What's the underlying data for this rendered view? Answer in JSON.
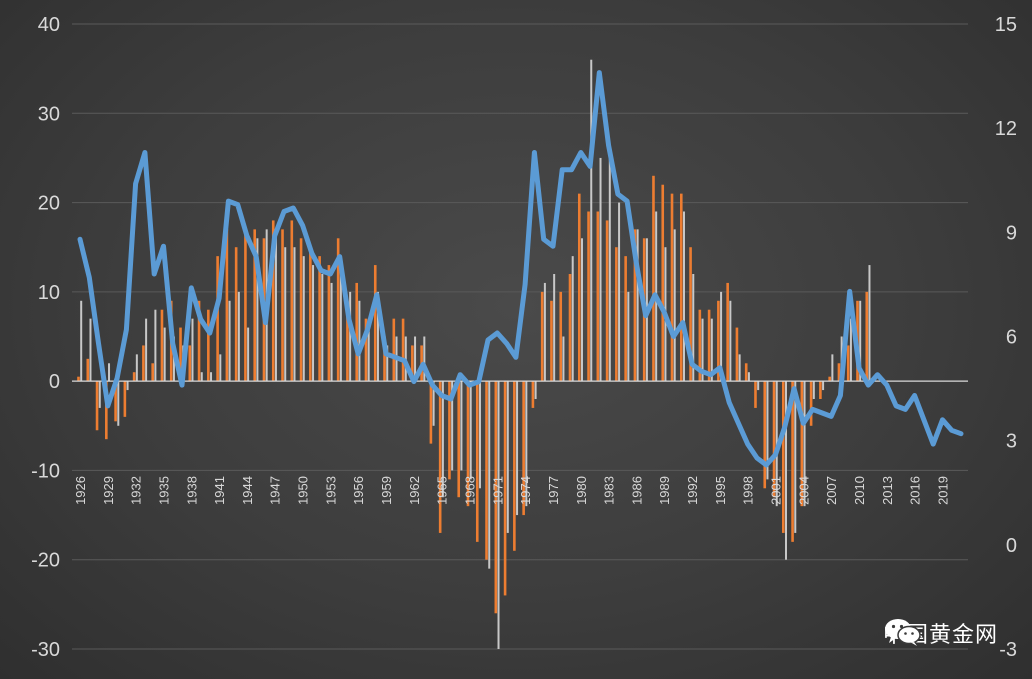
{
  "chart_data": {
    "type": "bar",
    "title": "",
    "xlabel": "",
    "ylabel": "",
    "left_axis": {
      "ylim": [
        -30,
        40
      ],
      "ticks": [
        "40",
        "30",
        "20",
        "10",
        "0",
        "-10",
        "-20",
        "-30"
      ]
    },
    "right_axis": {
      "ylim": [
        -3,
        15
      ],
      "ticks": [
        "15",
        "12",
        "9",
        "6",
        "3",
        "0",
        "-3"
      ]
    },
    "x_tick_labels": [
      "1926",
      "1929",
      "1932",
      "1935",
      "1938",
      "1941",
      "1944",
      "1947",
      "1950",
      "1953",
      "1956",
      "1959",
      "1962",
      "1965",
      "1968",
      "1971",
      "1974",
      "1977",
      "1980",
      "1983",
      "1986",
      "1989",
      "1992",
      "1995",
      "1998",
      "2001",
      "2004",
      "2007",
      "2010",
      "2013",
      "2016",
      "2019"
    ],
    "years": [
      1926,
      1927,
      1928,
      1929,
      1930,
      1931,
      1932,
      1933,
      1934,
      1935,
      1936,
      1937,
      1938,
      1939,
      1940,
      1941,
      1942,
      1943,
      1944,
      1945,
      1946,
      1947,
      1948,
      1949,
      1950,
      1951,
      1952,
      1953,
      1954,
      1955,
      1956,
      1957,
      1958,
      1959,
      1960,
      1961,
      1962,
      1963,
      1964,
      1965,
      1966,
      1967,
      1968,
      1969,
      1970,
      1971,
      1972,
      1973,
      1974,
      1975,
      1976,
      1977,
      1978,
      1979,
      1980,
      1981,
      1982,
      1983,
      1984,
      1985,
      1986,
      1987,
      1988,
      1989,
      1990,
      1991,
      1992,
      1993,
      1994,
      1995,
      1996,
      1997,
      1998,
      1999,
      2000,
      2001,
      2002,
      2003,
      2004,
      2005,
      2006,
      2007,
      2008,
      2009,
      2010,
      2011,
      2012,
      2013,
      2014,
      2015,
      2016,
      2017,
      2018,
      2019,
      2020,
      2021
    ],
    "series": [
      {
        "axis": "left",
        "kind": "bar",
        "color": "#ed7d31",
        "values": [
          0.5,
          2.5,
          -5.5,
          -6.5,
          -4.5,
          -4,
          1,
          4,
          2,
          8,
          9,
          6,
          4,
          9,
          8,
          14,
          17,
          15,
          17,
          17,
          16,
          18,
          17,
          18,
          16,
          15,
          14,
          13,
          16,
          9,
          11,
          7,
          13,
          5,
          7,
          7,
          4,
          4,
          -7,
          -17,
          -11,
          -13,
          -14,
          -18,
          -20,
          -26,
          -24,
          -19,
          -15,
          -3,
          10,
          9,
          10,
          12,
          21,
          19,
          19,
          18,
          15,
          14,
          17,
          16,
          23,
          22,
          21,
          21,
          15,
          8,
          8,
          9,
          11,
          6,
          2,
          -3,
          -12,
          -13,
          -17,
          -18,
          -14,
          -5,
          -2,
          0.5,
          2,
          4,
          9,
          10,
          0,
          0,
          0,
          0,
          0,
          0,
          0,
          0,
          0,
          0
        ]
      },
      {
        "axis": "left",
        "kind": "bar",
        "color": "#c8c8c8",
        "values": [
          9,
          7,
          -3,
          2,
          -5,
          -1,
          3,
          7,
          8,
          6,
          5,
          4,
          7,
          1,
          1,
          3,
          9,
          10,
          6,
          16,
          17,
          17,
          15,
          15,
          14,
          13,
          12,
          11,
          14,
          10,
          9,
          6,
          10,
          4,
          5,
          5,
          5,
          5,
          -5,
          -13,
          -10,
          -10,
          -11,
          -12,
          -21,
          -30,
          -17,
          -15,
          -14,
          -2,
          11,
          12,
          5,
          14,
          16,
          36,
          25,
          25,
          20,
          10,
          17,
          16,
          19,
          15,
          17,
          19,
          12,
          7,
          7,
          10,
          9,
          3,
          1,
          -1,
          -11,
          -14,
          -20,
          -17,
          -14,
          -2,
          -1,
          3,
          5,
          7,
          9,
          13,
          0,
          0,
          0,
          0,
          0,
          0,
          0,
          0,
          0,
          0
        ]
      },
      {
        "axis": "right",
        "kind": "line",
        "color": "#5b9bd5",
        "values": [
          8.8,
          7.7,
          5.8,
          4.0,
          4.8,
          6.2,
          10.4,
          11.3,
          7.8,
          8.6,
          5.8,
          4.6,
          7.4,
          6.5,
          6.1,
          7.1,
          9.9,
          9.8,
          8.9,
          8.3,
          6.4,
          8.9,
          9.6,
          9.7,
          9.2,
          8.4,
          7.9,
          7.8,
          8.3,
          6.5,
          5.5,
          6.2,
          7.2,
          5.5,
          5.4,
          5.3,
          4.7,
          5.2,
          4.6,
          4.3,
          4.2,
          4.9,
          4.6,
          4.7,
          5.9,
          6.1,
          5.8,
          5.4,
          7.5,
          11.3,
          8.8,
          8.6,
          10.8,
          10.8,
          11.3,
          10.9,
          13.6,
          11.5,
          10.1,
          9.9,
          8.1,
          6.6,
          7.2,
          6.7,
          6.0,
          6.4,
          5.2,
          5.0,
          4.9,
          5.1,
          4.1,
          3.5,
          2.9,
          2.5,
          2.3,
          2.6,
          3.4,
          4.5,
          3.5,
          3.9,
          3.8,
          3.7,
          4.3,
          7.3,
          5.1,
          4.6,
          4.9,
          4.6,
          4.0,
          3.9,
          4.3,
          3.6,
          2.9,
          3.6,
          3.3,
          3.2
        ]
      }
    ]
  },
  "watermark": {
    "text": "中国黄金网",
    "icon": "wechat-icon"
  }
}
